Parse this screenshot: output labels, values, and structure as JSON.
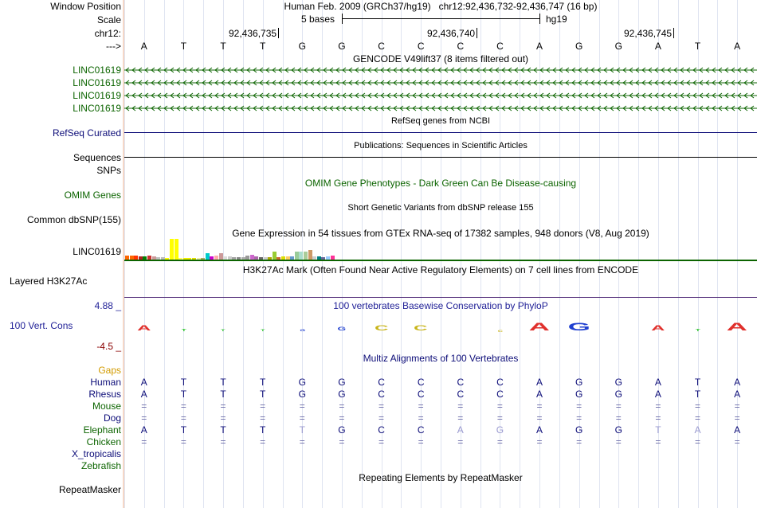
{
  "colors": {
    "gencode": "#0c6400",
    "refseq": "#0c0c78",
    "omim": "#0c6400",
    "h3k27ac": "#0c6400",
    "phylop_title": "#1e1e96",
    "multiz_title": "#0c0c78",
    "gaps": "#d29b00",
    "species_green": "#0c6400",
    "species_navy": "#0c0c78",
    "scale_max": "#1e1e96",
    "scale_min": "#8b0000"
  },
  "labels": {
    "window_position": "Window Position",
    "scale": "Scale",
    "chr": "chr12:",
    "strand": "--->",
    "gencode_genes": [
      "LINC01619",
      "LINC01619",
      "LINC01619",
      "LINC01619"
    ],
    "refseq": "RefSeq Curated",
    "sequences": "Sequences",
    "snps": "SNPs",
    "omim": "OMIM Genes",
    "common_dbsnp": "Common dbSNP(155)",
    "gtex_gene": "LINC01619",
    "h3k27ac": "Layered H3K27Ac",
    "phylop_max": "4.88 _",
    "phylop_track": "100 Vert. Cons",
    "phylop_min": "-4.5 _",
    "gaps": "Gaps",
    "species": [
      "Human",
      "Rhesus",
      "Mouse",
      "Dog",
      "Elephant",
      "Chicken",
      "X_tropicalis",
      "Zebrafish"
    ],
    "repeatmasker": "RepeatMasker"
  },
  "header": {
    "assembly_title": "Human Feb. 2009 (GRCh37/hg19)   chr12:92,436,732-92,436,747 (16 bp)",
    "scale_text": "5 bases",
    "scale_db": "hg19",
    "ticks": [
      "92,436,735",
      "92,436,740",
      "92,436,745"
    ]
  },
  "sequence": [
    "A",
    "T",
    "T",
    "T",
    "G",
    "G",
    "C",
    "C",
    "C",
    "C",
    "A",
    "G",
    "G",
    "A",
    "T",
    "A"
  ],
  "titles": {
    "gencode": "GENCODE V49lift37 (8 items filtered out)",
    "refseq": "RefSeq genes from NCBI",
    "publications": "Publications: Sequences in Scientific Articles",
    "omim": "OMIM Gene Phenotypes - Dark Green Can Be Disease-causing",
    "dbsnp": "Short Genetic Variants from dbSNP release 155",
    "gtex": "Gene Expression in 54 tissues from GTEx RNA-seq of 17382 samples, 948 donors (V8, Aug 2019)",
    "h3k27ac": "H3K27Ac Mark (Often Found Near Active Regulatory Elements) on 7 cell lines from ENCODE",
    "phylop": "100 vertebrates Basewise Conservation by PhyloP",
    "multiz": "Multiz Alignments of 100 Vertebrates",
    "repeatmasker": "Repeating Elements by RepeatMasker"
  },
  "gtex_bars": [
    {
      "c": "#ff6600",
      "h": 0.2
    },
    {
      "c": "#ff6600",
      "h": 0.2
    },
    {
      "c": "#ff3300",
      "h": 0.2
    },
    {
      "c": "#aa2222",
      "h": 0.15
    },
    {
      "c": "#008000",
      "h": 0.15
    },
    {
      "c": "#cc3333",
      "h": 0.2
    },
    {
      "c": "#cc9999",
      "h": 0.15
    },
    {
      "c": "#c0c0c0",
      "h": 0.12
    },
    {
      "c": "#bbbbbb",
      "h": 0.1
    },
    {
      "c": "#ffff00",
      "h": 0.08
    },
    {
      "c": "#ffff00",
      "h": 1.0
    },
    {
      "c": "#ffff00",
      "h": 1.0
    },
    {
      "c": "#ffff66",
      "h": 0.08
    },
    {
      "c": "#eeee00",
      "h": 0.06
    },
    {
      "c": "#eeee00",
      "h": 0.06
    },
    {
      "c": "#dddd00",
      "h": 0.06
    },
    {
      "c": "#eeeeaa",
      "h": 0.05
    },
    {
      "c": "#aaaa66",
      "h": 0.05
    },
    {
      "c": "#00cccc",
      "h": 0.3
    },
    {
      "c": "#cc00cc",
      "h": 0.15
    },
    {
      "c": "#ffaaaa",
      "h": 0.2
    },
    {
      "c": "#cc9999",
      "h": 0.3
    },
    {
      "c": "#dddddd",
      "h": 0.15
    },
    {
      "c": "#cccccc",
      "h": 0.15
    },
    {
      "c": "#a0a0a0",
      "h": 0.1
    },
    {
      "c": "#888888",
      "h": 0.1
    },
    {
      "c": "#aaaaaa",
      "h": 0.1
    },
    {
      "c": "#999999",
      "h": 0.2
    },
    {
      "c": "#cc66cc",
      "h": 0.25
    },
    {
      "c": "#aa66aa",
      "h": 0.15
    },
    {
      "c": "#666666",
      "h": 0.1
    },
    {
      "c": "#cccccc",
      "h": 0.1
    },
    {
      "c": "#aaaa00",
      "h": 0.1
    },
    {
      "c": "#99cc33",
      "h": 0.4
    },
    {
      "c": "#cc6633",
      "h": 0.1
    },
    {
      "c": "#dddd00",
      "h": 0.15
    },
    {
      "c": "#ffcc66",
      "h": 0.15
    },
    {
      "c": "#6699cc",
      "h": 0.15
    },
    {
      "c": "#99cc99",
      "h": 0.4
    },
    {
      "c": "#aaddcc",
      "h": 0.4
    },
    {
      "c": "#aacc99",
      "h": 0.4
    },
    {
      "c": "#cc9966",
      "h": 0.45
    },
    {
      "c": "#cccccc",
      "h": 0.15
    },
    {
      "c": "#008080",
      "h": 0.15
    },
    {
      "c": "#666699",
      "h": 0.1
    },
    {
      "c": "#99ccff",
      "h": 0.15
    },
    {
      "c": "#ff3399",
      "h": 0.2
    }
  ],
  "phylop_logo": [
    {
      "b": "A",
      "c": "#e0302c",
      "w": 0.6
    },
    {
      "b": "T",
      "c": "#2ac22a",
      "w": 0.2
    },
    {
      "b": "T",
      "c": "#2ac22a",
      "w": 0.15
    },
    {
      "b": "T",
      "c": "#2ac22a",
      "w": 0.15
    },
    {
      "b": "G",
      "c": "#2040d0",
      "w": 0.15
    },
    {
      "b": "G",
      "c": "#2040d0",
      "w": 0.35
    },
    {
      "b": "C",
      "c": "#c8b418",
      "w": 0.6
    },
    {
      "b": "C",
      "c": "#c8b418",
      "w": 0.6
    },
    {
      "b": "C",
      "c": "#c8b418",
      "w": 0.0
    },
    {
      "b": "C",
      "c": "#c8b418",
      "w": 0.1
    },
    {
      "b": "A",
      "c": "#e0302c",
      "w": 1.0
    },
    {
      "b": "G",
      "c": "#2040d0",
      "w": 1.0
    },
    {
      "b": "G",
      "c": "#2040d0",
      "w": 0.0
    },
    {
      "b": "A",
      "c": "#e0302c",
      "w": 0.6
    },
    {
      "b": "T",
      "c": "#2ac22a",
      "w": 0.2
    },
    {
      "b": "A",
      "c": "#e0302c",
      "w": 1.0
    }
  ],
  "alignment": {
    "Human": {
      "seq": [
        "A",
        "T",
        "T",
        "T",
        "G",
        "G",
        "C",
        "C",
        "C",
        "C",
        "A",
        "G",
        "G",
        "A",
        "T",
        "A"
      ],
      "color": "#0c0c78"
    },
    "Rhesus": {
      "seq": [
        "A",
        "T",
        "T",
        "T",
        "G",
        "G",
        "C",
        "C",
        "C",
        "C",
        "A",
        "G",
        "G",
        "A",
        "T",
        "A"
      ],
      "color": "#0c0c78"
    },
    "Mouse": {
      "seq": [
        "=",
        "=",
        "=",
        "=",
        "=",
        "=",
        "=",
        "=",
        "=",
        "=",
        "=",
        "=",
        "=",
        "=",
        "=",
        "="
      ],
      "color": "#6a6aa8"
    },
    "Dog": {
      "seq": [
        "=",
        "=",
        "=",
        "=",
        "=",
        "=",
        "=",
        "=",
        "=",
        "=",
        "=",
        "=",
        "=",
        "=",
        "=",
        "="
      ],
      "color": "#6a6aa8"
    },
    "Elephant": {
      "seq": [
        "A",
        "T",
        "T",
        "T",
        "T",
        "G",
        "C",
        "C",
        "A",
        "G",
        "A",
        "G",
        "G",
        "T",
        "A",
        "A"
      ],
      "color": "#0c0c78",
      "faded": [
        4,
        8,
        9,
        13,
        14
      ]
    },
    "Chicken": {
      "seq": [
        "=",
        "=",
        "=",
        "=",
        "=",
        "=",
        "=",
        "=",
        "=",
        "=",
        "=",
        "=",
        "=",
        "=",
        "=",
        "="
      ],
      "color": "#6a6aa8"
    }
  }
}
